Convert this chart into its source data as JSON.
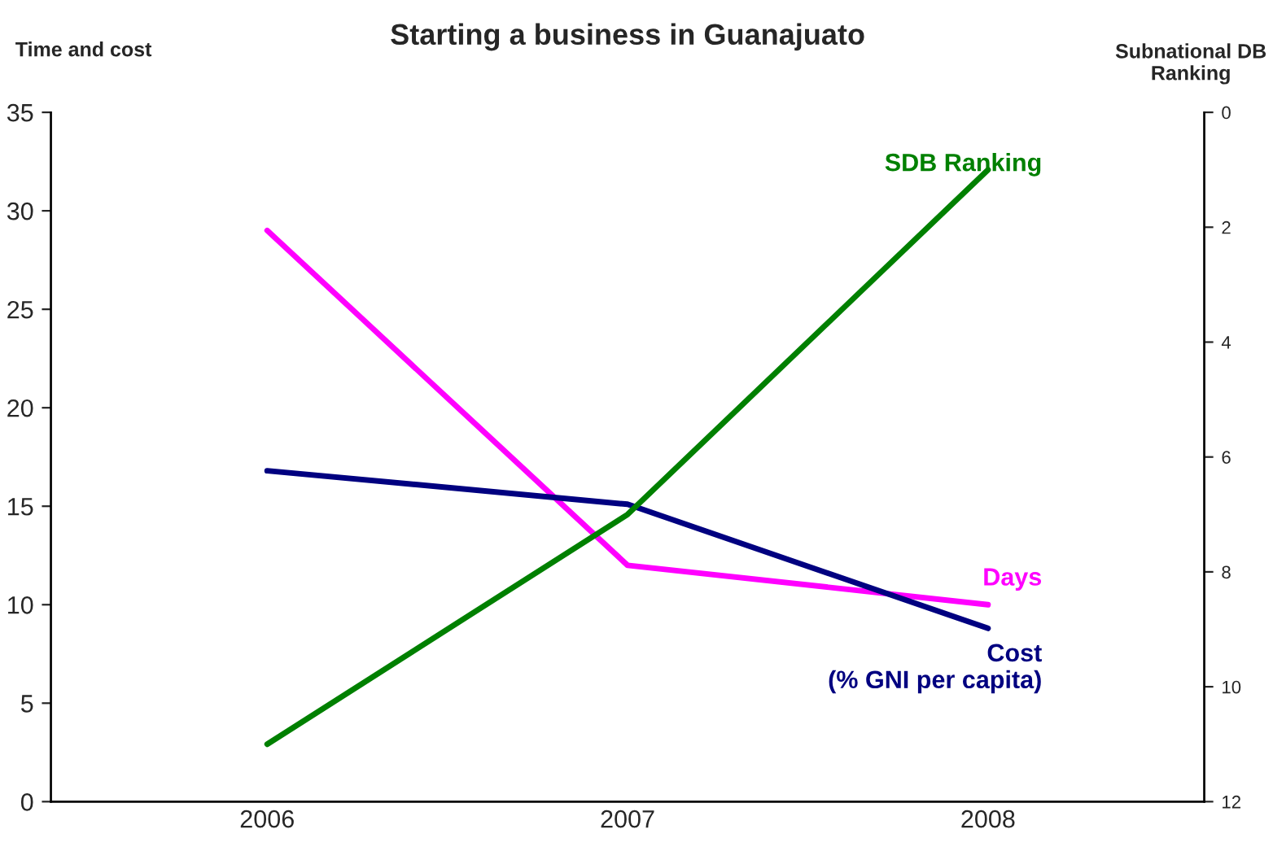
{
  "chart_data": {
    "type": "line",
    "title": "Starting a business in Guanajuato",
    "ylabel": "Time and cost",
    "y2label": "Subnational DB\nRanking",
    "categories": [
      "2006",
      "2007",
      "2008"
    ],
    "series": [
      {
        "name": "Days",
        "color": "#ff00ff",
        "values": [
          29.0,
          12.0,
          10.0
        ]
      },
      {
        "name": "Cost\n(% GNI per capita)",
        "color": "#000080",
        "values": [
          16.8,
          15.1,
          8.8
        ]
      },
      {
        "name": "SDB Ranking",
        "color": "#008000",
        "values": [
          11.0,
          7.0,
          1.0
        ],
        "axis": "y2"
      }
    ],
    "ylim": [
      0,
      35
    ],
    "yticks": [
      0,
      5,
      10,
      15,
      20,
      25,
      30,
      35
    ],
    "y2lim": [
      12,
      0
    ],
    "y2ticks": [
      0,
      2,
      4,
      6,
      8,
      10,
      12
    ],
    "grid": false,
    "legend": false,
    "marker": "none",
    "line_style": "solid"
  }
}
